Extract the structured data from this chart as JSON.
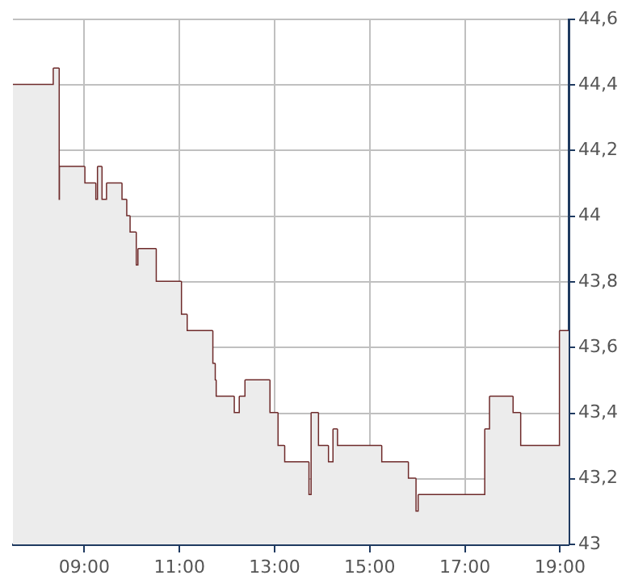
{
  "chart_data": {
    "type": "step",
    "x": [
      7.5,
      8.36,
      8.46,
      8.49,
      9.0,
      9.23,
      9.29,
      9.36,
      9.48,
      9.78,
      9.88,
      9.95,
      10.08,
      10.14,
      10.5,
      11.03,
      11.15,
      11.69,
      11.74,
      11.76,
      12.14,
      12.27,
      12.39,
      12.89,
      13.06,
      13.2,
      13.71,
      13.78,
      13.91,
      14.12,
      14.24,
      14.31,
      15.24,
      15.8,
      15.96,
      16.03,
      17.43,
      17.53,
      18.0,
      18.16,
      19.0,
      19.18
    ],
    "series": [
      {
        "type": "area",
        "color": "#ececec",
        "values": [
          44.4,
          44.45,
          44.05,
          44.15,
          44.1,
          44.05,
          44.15,
          44.05,
          44.1,
          44.05,
          44.0,
          43.95,
          43.85,
          43.9,
          43.8,
          43.7,
          43.65,
          43.55,
          43.5,
          43.45,
          43.4,
          43.45,
          43.5,
          43.4,
          43.3,
          43.25,
          43.15,
          43.4,
          43.3,
          43.25,
          43.35,
          43.3,
          43.25,
          43.2,
          43.1,
          43.15,
          43.35,
          43.45,
          43.4,
          43.3,
          43.65,
          43.65
        ]
      },
      {
        "color": "#6e2a2a",
        "values": [
          44.4,
          44.45,
          44.05,
          44.15,
          44.1,
          44.05,
          44.15,
          44.05,
          44.1,
          44.05,
          44.0,
          43.95,
          43.85,
          43.9,
          43.8,
          43.7,
          43.65,
          43.55,
          43.5,
          43.45,
          43.4,
          43.45,
          43.5,
          43.4,
          43.3,
          43.25,
          43.15,
          43.4,
          43.3,
          43.25,
          43.35,
          43.3,
          43.25,
          43.2,
          43.1,
          43.15,
          43.35,
          43.45,
          43.4,
          43.3,
          43.65,
          43.65
        ]
      }
    ],
    "xlim": [
      7.5,
      19.18
    ],
    "xticks": [
      {
        "value": 9,
        "label": "09:00"
      },
      {
        "value": 11,
        "label": "11:00"
      },
      {
        "value": 13,
        "label": "13:00"
      },
      {
        "value": 15,
        "label": "15:00"
      },
      {
        "value": 17,
        "label": "17:00"
      },
      {
        "value": 19,
        "label": "19:00"
      }
    ],
    "ylim": [
      43,
      44.6
    ],
    "yticks": [
      43,
      {
        "value": 43.2,
        "label": "43,2"
      },
      {
        "value": 43.4,
        "label": "43,4"
      },
      {
        "value": 43.6,
        "label": "43,6"
      },
      {
        "value": 43.8,
        "label": "43,8"
      },
      44,
      {
        "value": 44.2,
        "label": "44,2"
      },
      {
        "value": 44.4,
        "label": "44,4"
      },
      {
        "value": 44.6,
        "label": "44,6"
      }
    ],
    "grid": true,
    "legend": false,
    "marker": "none",
    "line_style": "solid"
  }
}
